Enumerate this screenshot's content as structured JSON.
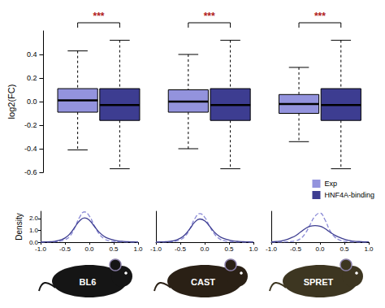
{
  "chart_data": [
    {
      "type": "boxplot",
      "ylabel": "log2(FC)",
      "ylim": [
        -0.6,
        0.6
      ],
      "yticks": [
        -0.6,
        -0.4,
        -0.2,
        {
          "value": 0,
          "label": "0.0"
        },
        0.2,
        0.4
      ],
      "tick_labels": "y",
      "legend": "lower right",
      "annotations": [
        "***",
        "***",
        "***"
      ],
      "series": [
        {
          "name": "Exp",
          "color": "#9393dd",
          "values": [
            [
              -0.41,
              -0.09,
              0.01,
              0.11,
              0.43
            ],
            [
              -0.4,
              -0.09,
              0.0,
              0.1,
              0.4
            ],
            [
              -0.34,
              -0.1,
              -0.02,
              0.06,
              0.29
            ]
          ]
        },
        {
          "name": "HNF4A-binding",
          "color": "#3d3d91",
          "values": [
            [
              -0.57,
              -0.16,
              -0.03,
              0.11,
              0.52
            ],
            [
              -0.57,
              -0.16,
              -0.03,
              0.11,
              0.52
            ],
            [
              -0.57,
              -0.16,
              -0.03,
              0.11,
              0.52
            ]
          ]
        }
      ]
    },
    {
      "type": "line",
      "title": "BL6",
      "ylabel": "Density",
      "x": [
        -1.0,
        -0.9,
        -0.8,
        -0.7,
        -0.6,
        -0.5,
        -0.4,
        -0.3,
        -0.2,
        -0.1,
        0.0,
        0.1,
        0.2,
        0.3,
        0.4,
        0.5,
        0.6,
        0.7,
        0.8,
        0.9,
        1.0
      ],
      "xlim": [
        -1,
        1
      ],
      "xticks": [
        {
          "value": -1,
          "label": "-1.0"
        },
        -0.5,
        {
          "value": 0,
          "label": "0.0"
        },
        0.5,
        {
          "value": 1,
          "label": "1.0"
        }
      ],
      "ylim": [
        0,
        2.6
      ],
      "yticks": [
        {
          "value": 0,
          "label": "0.0"
        },
        {
          "value": 1,
          "label": "1.0"
        },
        {
          "value": 2,
          "label": "2.0"
        }
      ],
      "series": [
        {
          "name": "Exp",
          "color": "#8a8ad6",
          "line_style": "dashed",
          "values": [
            0,
            0,
            0.01,
            0.03,
            0.08,
            0.2,
            0.5,
            1.2,
            2.1,
            2.55,
            2.2,
            1.4,
            0.7,
            0.3,
            0.12,
            0.05,
            0.02,
            0.01,
            0,
            0,
            0
          ]
        },
        {
          "name": "HNF4A-binding",
          "color": "#3d3d91",
          "line_style": "solid",
          "values": [
            0,
            0.02,
            0.04,
            0.08,
            0.18,
            0.35,
            0.7,
            1.25,
            1.8,
            2.05,
            1.85,
            1.35,
            0.85,
            0.5,
            0.3,
            0.18,
            0.1,
            0.06,
            0.04,
            0.02,
            0.01
          ]
        }
      ]
    },
    {
      "type": "line",
      "title": "CAST",
      "tick_labels": "x",
      "x": [
        -1.0,
        -0.9,
        -0.8,
        -0.7,
        -0.6,
        -0.5,
        -0.4,
        -0.3,
        -0.2,
        -0.1,
        0.0,
        0.1,
        0.2,
        0.3,
        0.4,
        0.5,
        0.6,
        0.7,
        0.8,
        0.9,
        1.0
      ],
      "xlim": [
        -1,
        1
      ],
      "xticks": [
        {
          "value": -1,
          "label": "-1.0"
        },
        -0.5,
        {
          "value": 0,
          "label": "0.0"
        },
        0.5,
        {
          "value": 1,
          "label": "1.0"
        }
      ],
      "ylim": [
        0,
        2.6
      ],
      "series": [
        {
          "name": "Exp",
          "color": "#8a8ad6",
          "line_style": "dashed",
          "values": [
            0,
            0,
            0.01,
            0.03,
            0.08,
            0.2,
            0.5,
            1.15,
            2.0,
            2.4,
            2.1,
            1.35,
            0.7,
            0.3,
            0.12,
            0.05,
            0.02,
            0.01,
            0,
            0,
            0
          ]
        },
        {
          "name": "HNF4A-binding",
          "color": "#3d3d91",
          "line_style": "solid",
          "values": [
            0.01,
            0.02,
            0.04,
            0.08,
            0.17,
            0.33,
            0.65,
            1.15,
            1.7,
            1.95,
            1.8,
            1.35,
            0.85,
            0.5,
            0.3,
            0.18,
            0.1,
            0.06,
            0.04,
            0.02,
            0.01
          ]
        }
      ]
    },
    {
      "type": "line",
      "title": "SPRET",
      "tick_labels": "x",
      "x": [
        -1.0,
        -0.9,
        -0.8,
        -0.7,
        -0.6,
        -0.5,
        -0.4,
        -0.3,
        -0.2,
        -0.1,
        0.0,
        0.1,
        0.2,
        0.3,
        0.4,
        0.5,
        0.6,
        0.7,
        0.8,
        0.9,
        1.0
      ],
      "xlim": [
        -1,
        1
      ],
      "xticks": [
        {
          "value": -1,
          "label": "-1.0"
        },
        -0.5,
        {
          "value": 0,
          "label": "0.0"
        },
        0.5,
        {
          "value": 1,
          "label": "1.0"
        }
      ],
      "ylim": [
        0,
        2.6
      ],
      "series": [
        {
          "name": "Exp",
          "color": "#8a8ad6",
          "line_style": "dashed",
          "values": [
            0,
            0,
            0.01,
            0.02,
            0.05,
            0.12,
            0.3,
            0.75,
            1.5,
            2.2,
            2.45,
            1.9,
            1.0,
            0.45,
            0.18,
            0.07,
            0.03,
            0.01,
            0,
            0,
            0
          ]
        },
        {
          "name": "HNF4A-binding",
          "color": "#3d3d91",
          "line_style": "solid",
          "values": [
            0.02,
            0.05,
            0.1,
            0.2,
            0.35,
            0.55,
            0.85,
            1.15,
            1.35,
            1.4,
            1.35,
            1.15,
            0.85,
            0.6,
            0.4,
            0.25,
            0.15,
            0.08,
            0.05,
            0.03,
            0.02
          ]
        }
      ]
    }
  ]
}
